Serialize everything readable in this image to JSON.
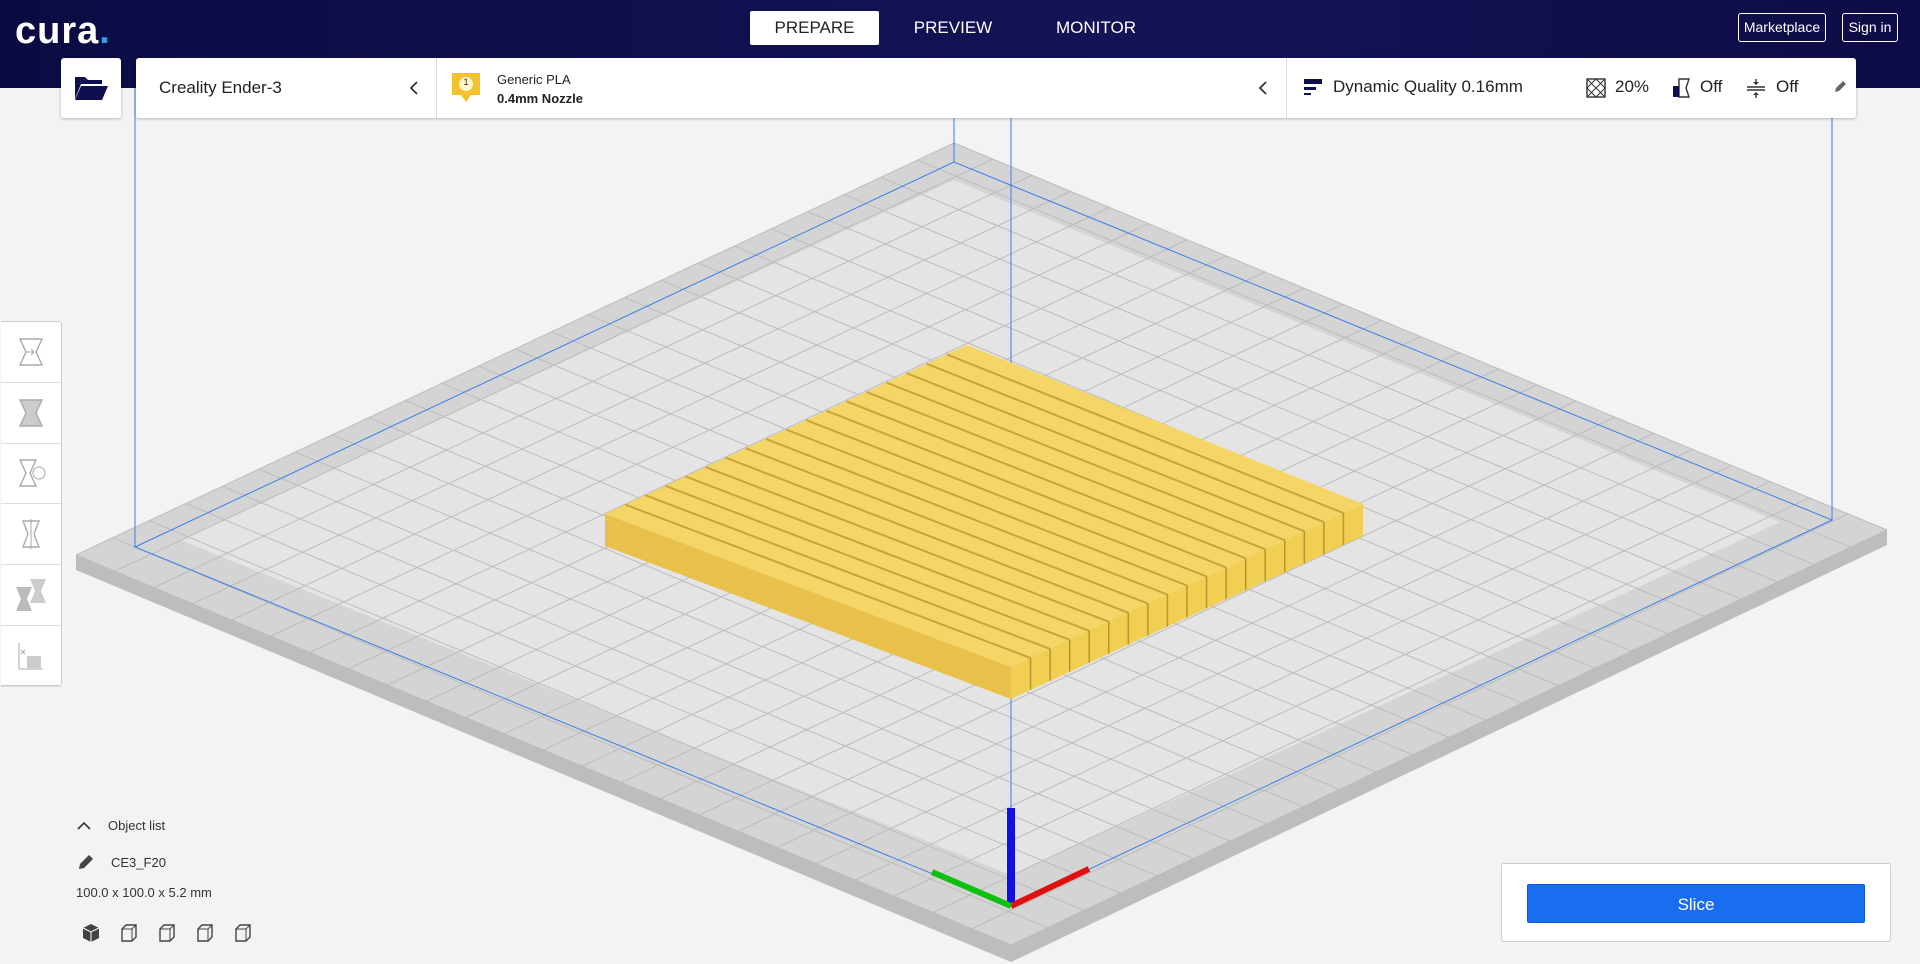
{
  "app": {
    "logo": "cura",
    "logo_dot": "."
  },
  "header": {
    "tabs": [
      {
        "label": "PREPARE",
        "active": true
      },
      {
        "label": "PREVIEW"
      },
      {
        "label": "MONITOR"
      }
    ],
    "marketplace": "Marketplace",
    "sign_in": "Sign in"
  },
  "toolbar": {
    "open_icon": "folder-open-icon",
    "printer": "Creality Ender-3",
    "extruder_number": "1",
    "material": "Generic PLA",
    "nozzle": "0.4mm Nozzle",
    "quality": "Dynamic Quality 0.16mm",
    "infill": "20%",
    "support": "Off",
    "adhesion": "Off"
  },
  "left_tools": [
    "move",
    "scale",
    "rotate",
    "mirror",
    "per-model-settings",
    "support-blocker"
  ],
  "object_list": {
    "label": "Object list",
    "object_name": "CE3_F20",
    "dimensions": "100.0 x 100.0 x 5.2 mm"
  },
  "view_buttons": [
    "3d-view",
    "front-view",
    "top-view",
    "left-view",
    "right-view"
  ],
  "slice": {
    "label": "Slice"
  },
  "colors": {
    "header": "#0f0e4e",
    "accent": "#196ef0",
    "model": "#f5d05a",
    "x_axis": "#e01010",
    "y_axis": "#10c010",
    "z_axis": "#1010e0",
    "volume": "#3a7ee8"
  }
}
